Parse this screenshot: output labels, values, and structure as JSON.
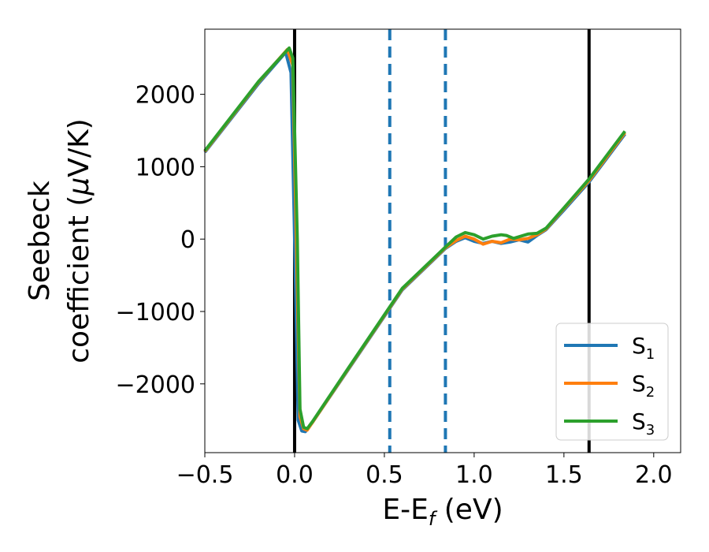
{
  "chart_data": {
    "type": "line",
    "xlabel": {
      "main": "E-E",
      "sub": "f",
      "unit": " (eV)"
    },
    "ylabel": {
      "line1": "Seebeck",
      "line2_pre": "coefficient  (",
      "line2_mu": "μ",
      "line2_post": "V/K)"
    },
    "xlim": [
      -0.5,
      2.15
    ],
    "ylim": [
      -2950,
      2900
    ],
    "xticks": [
      -0.5,
      0.0,
      0.5,
      1.0,
      1.5,
      2.0
    ],
    "xtick_labels": [
      "−0.5",
      "0.0",
      "0.5",
      "1.0",
      "1.5",
      "2.0"
    ],
    "yticks": [
      2000,
      1000,
      0,
      -1000,
      -2000
    ],
    "ytick_labels": [
      "2000",
      "1000",
      "0",
      "−1000",
      "−2000"
    ],
    "grid": false,
    "legend_position": "bottom-right",
    "vlines": [
      {
        "x": 0.0,
        "style": "solid",
        "color": "#000000"
      },
      {
        "x": 1.64,
        "style": "solid",
        "color": "#000000"
      },
      {
        "x": 0.53,
        "style": "dashed",
        "color": "#1f77b4"
      },
      {
        "x": 0.84,
        "style": "dashed",
        "color": "#1f77b4"
      }
    ],
    "series": [
      {
        "name": {
          "base": "S",
          "sub": "1"
        },
        "color": "#1f77b4",
        "x": [
          -0.5,
          -0.2,
          -0.05,
          -0.02,
          0.0,
          0.02,
          0.04,
          0.06,
          0.1,
          0.3,
          0.6,
          0.84,
          0.9,
          0.95,
          1.0,
          1.05,
          1.1,
          1.15,
          1.2,
          1.25,
          1.3,
          1.35,
          1.4,
          1.5,
          1.64,
          1.84
        ],
        "y": [
          1200,
          2150,
          2580,
          2300,
          0,
          -2500,
          -2650,
          -2660,
          -2530,
          -1800,
          -700,
          -130,
          -30,
          20,
          -30,
          -60,
          -30,
          -60,
          -40,
          -10,
          -40,
          50,
          130,
          400,
          790,
          1450
        ]
      },
      {
        "name": {
          "base": "S",
          "sub": "2"
        },
        "color": "#ff7f0e",
        "x": [
          -0.5,
          -0.2,
          -0.04,
          -0.01,
          0.01,
          0.03,
          0.05,
          0.07,
          0.1,
          0.3,
          0.6,
          0.84,
          0.9,
          0.95,
          1.0,
          1.05,
          1.1,
          1.15,
          1.2,
          1.25,
          1.3,
          1.35,
          1.4,
          1.5,
          1.64,
          1.84
        ],
        "y": [
          1210,
          2170,
          2620,
          2400,
          0,
          -2450,
          -2620,
          -2640,
          -2530,
          -1790,
          -690,
          -120,
          -20,
          40,
          0,
          -70,
          -30,
          -50,
          0,
          -10,
          10,
          60,
          140,
          420,
          810,
          1470
        ]
      },
      {
        "name": {
          "base": "S",
          "sub": "3"
        },
        "color": "#2ca02c",
        "x": [
          -0.5,
          -0.2,
          -0.03,
          -0.01,
          0.015,
          0.03,
          0.05,
          0.07,
          0.1,
          0.3,
          0.6,
          0.84,
          0.9,
          0.95,
          1.0,
          1.05,
          1.1,
          1.15,
          1.18,
          1.22,
          1.3,
          1.35,
          1.4,
          1.5,
          1.64,
          1.84
        ],
        "y": [
          1220,
          2180,
          2640,
          2500,
          0,
          -2350,
          -2600,
          -2620,
          -2520,
          -1780,
          -680,
          -110,
          30,
          90,
          60,
          0,
          40,
          60,
          50,
          10,
          70,
          80,
          150,
          430,
          830,
          1490
        ]
      }
    ]
  }
}
